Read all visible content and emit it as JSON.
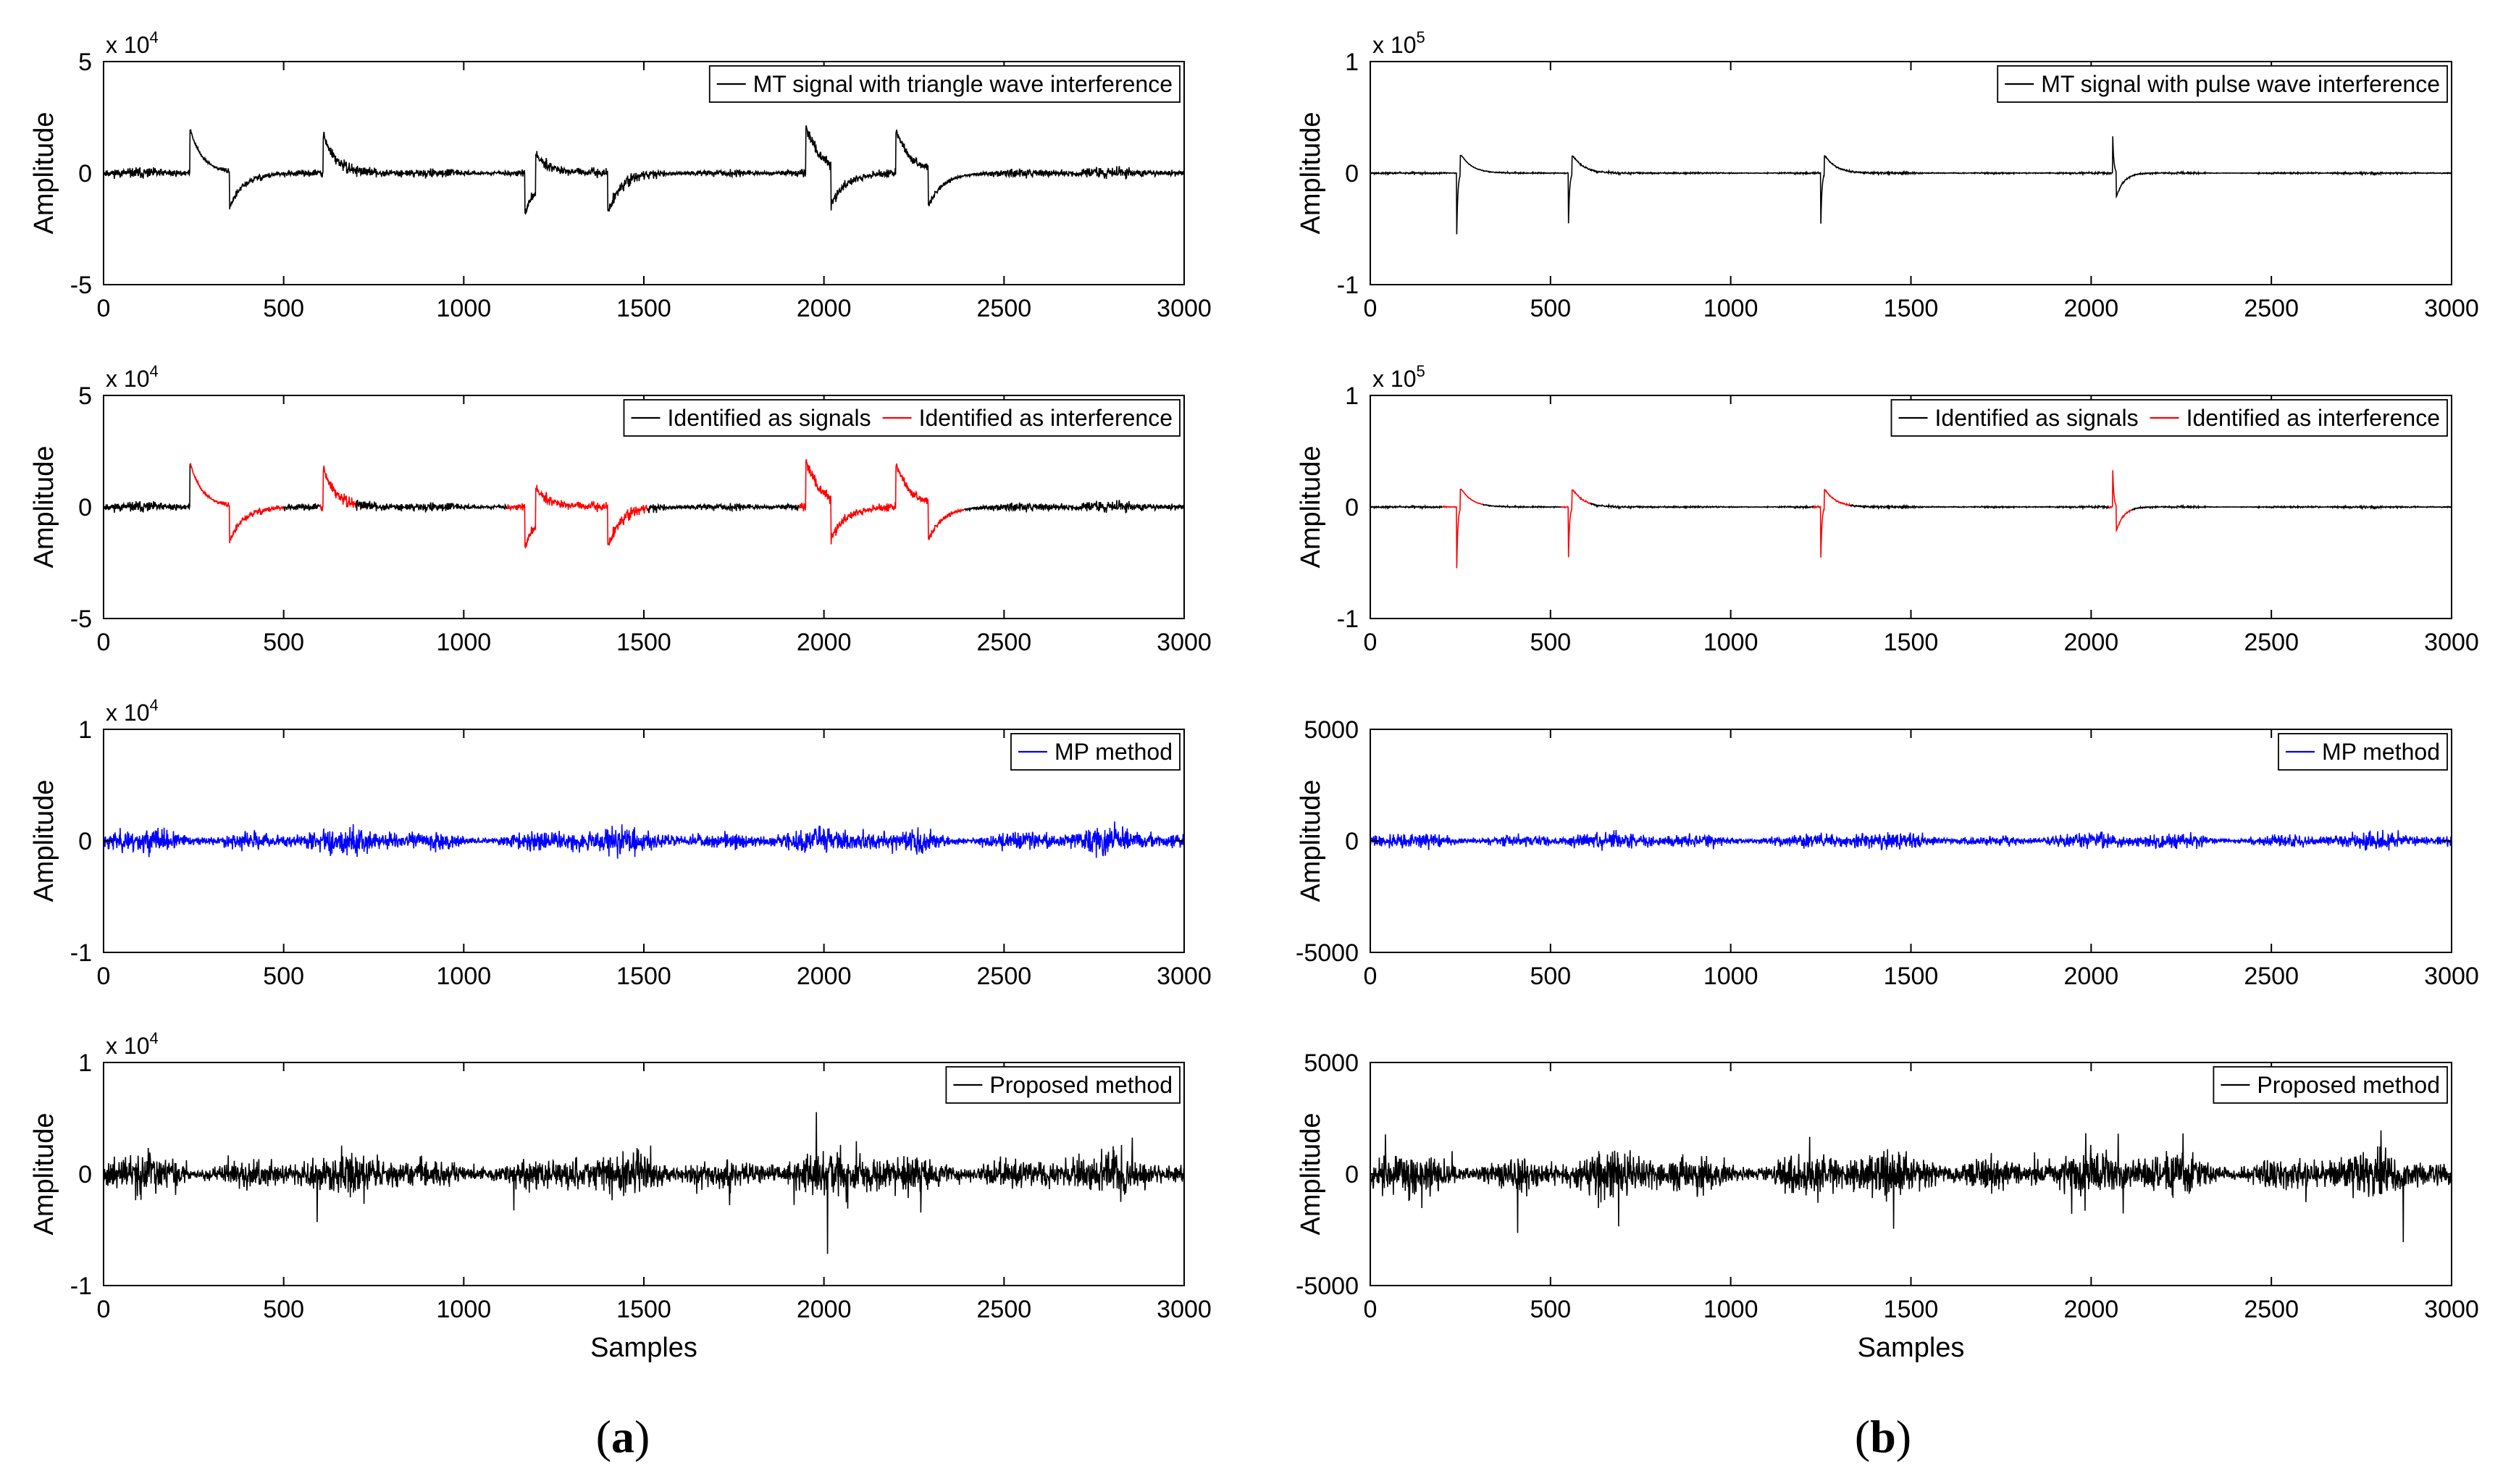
{
  "chart_data": [
    {
      "id": "a1",
      "type": "line",
      "column": "a",
      "row": 0,
      "xlabel": "",
      "ylabel": "Amplitude",
      "xlim": [
        0,
        3000
      ],
      "ylim": [
        -5,
        5
      ],
      "xticks": [
        "0",
        "500",
        "1000",
        "1500",
        "2000",
        "2500",
        "3000"
      ],
      "yticks": [
        "5",
        "0",
        "-5"
      ],
      "exponent": {
        "base": "x 10",
        "power": "4"
      },
      "series": [
        {
          "name": "MT signal with triangle wave interference",
          "color": "#000000",
          "noise": 0.15,
          "seed": 11,
          "events": [
            {
              "x": 240,
              "amp": 2.0,
              "decay": 35
            },
            {
              "x": 350,
              "amp": -1.6,
              "decay": 40
            },
            {
              "x": 610,
              "amp": 1.7,
              "decay": 35
            },
            {
              "x": 1170,
              "amp": -1.8,
              "decay": 40
            },
            {
              "x": 1200,
              "amp": 1.7,
              "decay": 40
            },
            {
              "x": 1400,
              "amp": -1.8,
              "decay": 35
            },
            {
              "x": 1950,
              "amp": 2.1,
              "decay": 40
            },
            {
              "x": 2020,
              "amp": -1.8,
              "decay": 40
            },
            {
              "x": 2200,
              "amp": 2.0,
              "decay": 40
            },
            {
              "x": 2290,
              "amp": -1.7,
              "decay": 40
            }
          ]
        }
      ],
      "legend": [
        "MT signal with triangle wave interference"
      ]
    },
    {
      "id": "a2",
      "type": "line",
      "column": "a",
      "row": 1,
      "xlabel": "",
      "ylabel": "Amplitude",
      "xlim": [
        0,
        3000
      ],
      "ylim": [
        -5,
        5
      ],
      "xticks": [
        "0",
        "500",
        "1000",
        "1500",
        "2000",
        "2500",
        "3000"
      ],
      "yticks": [
        "5",
        "0",
        "-5"
      ],
      "exponent": {
        "base": "x 10",
        "power": "4"
      },
      "series": [
        {
          "name": "Identified as signals",
          "color": "#000000",
          "noise": 0.15,
          "seed": 11,
          "events": [
            {
              "x": 240,
              "amp": 2.0,
              "decay": 35
            },
            {
              "x": 350,
              "amp": -1.6,
              "decay": 40
            },
            {
              "x": 610,
              "amp": 1.7,
              "decay": 35
            },
            {
              "x": 1170,
              "amp": -1.8,
              "decay": 40
            },
            {
              "x": 1200,
              "amp": 1.7,
              "decay": 40
            },
            {
              "x": 1400,
              "amp": -1.8,
              "decay": 35
            },
            {
              "x": 1950,
              "amp": 2.1,
              "decay": 40
            },
            {
              "x": 2020,
              "amp": -1.8,
              "decay": 40
            },
            {
              "x": 2200,
              "amp": 2.0,
              "decay": 40
            },
            {
              "x": 2290,
              "amp": -1.7,
              "decay": 40
            }
          ],
          "interference_color": "#ff0000",
          "interference_ranges": [
            [
              240,
              500
            ],
            [
              600,
              700
            ],
            [
              1120,
              1510
            ],
            [
              1930,
              2390
            ]
          ]
        }
      ],
      "legend": [
        "Identified as signals",
        "Identified as interference"
      ]
    },
    {
      "id": "a3",
      "type": "line",
      "column": "a",
      "row": 2,
      "xlabel": "",
      "ylabel": "Amplitude",
      "xlim": [
        0,
        3000
      ],
      "ylim": [
        -1,
        1
      ],
      "xticks": [
        "0",
        "500",
        "1000",
        "1500",
        "2000",
        "2500",
        "3000"
      ],
      "yticks": [
        "1",
        "0",
        "-1"
      ],
      "exponent": {
        "base": "x 10",
        "power": "4"
      },
      "series": [
        {
          "name": "MP method",
          "color": "#0000ff",
          "noise": 0.07,
          "seed": 23,
          "events": []
        }
      ],
      "legend": [
        "MP method"
      ]
    },
    {
      "id": "a4",
      "type": "line",
      "column": "a",
      "row": 3,
      "xlabel": "Samples",
      "ylabel": "Amplitude",
      "xlim": [
        0,
        3000
      ],
      "ylim": [
        -1,
        1
      ],
      "xticks": [
        "0",
        "500",
        "1000",
        "1500",
        "2000",
        "2500",
        "3000"
      ],
      "yticks": [
        "1",
        "0",
        "-1"
      ],
      "exponent": {
        "base": "x 10",
        "power": "4"
      },
      "series": [
        {
          "name": "Proposed method",
          "color": "#000000",
          "noise": 0.11,
          "seed": 37,
          "events": [],
          "spiky": true
        }
      ],
      "legend": [
        "Proposed method"
      ]
    },
    {
      "id": "b1",
      "type": "line",
      "column": "b",
      "row": 0,
      "xlabel": "",
      "ylabel": "Amplitude",
      "xlim": [
        0,
        3000
      ],
      "ylim": [
        -1,
        1
      ],
      "xticks": [
        "0",
        "500",
        "1000",
        "1500",
        "2000",
        "2500",
        "3000"
      ],
      "yticks": [
        "1",
        "0",
        "-1"
      ],
      "exponent": {
        "base": "x 10",
        "power": "5"
      },
      "series": [
        {
          "name": "MT signal with pulse wave interference",
          "color": "#000000",
          "noise": 0.006,
          "seed": 5,
          "events": [
            {
              "x": 240,
              "amp": -0.55,
              "decay": 3
            },
            {
              "x": 250,
              "amp": 0.18,
              "decay": 30
            },
            {
              "x": 550,
              "amp": -0.45,
              "decay": 3
            },
            {
              "x": 560,
              "amp": 0.17,
              "decay": 30
            },
            {
              "x": 1250,
              "amp": -0.45,
              "decay": 3
            },
            {
              "x": 1260,
              "amp": 0.17,
              "decay": 30
            },
            {
              "x": 2060,
              "amp": 0.33,
              "decay": 3
            },
            {
              "x": 2070,
              "amp": -0.22,
              "decay": 20
            }
          ]
        }
      ],
      "legend": [
        "MT signal with pulse wave interference"
      ]
    },
    {
      "id": "b2",
      "type": "line",
      "column": "b",
      "row": 1,
      "xlabel": "",
      "ylabel": "Amplitude",
      "xlim": [
        0,
        3000
      ],
      "ylim": [
        -1,
        1
      ],
      "xticks": [
        "0",
        "500",
        "1000",
        "1500",
        "2000",
        "2500",
        "3000"
      ],
      "yticks": [
        "1",
        "0",
        "-1"
      ],
      "exponent": {
        "base": "x 10",
        "power": "5"
      },
      "series": [
        {
          "name": "Identified as signals",
          "color": "#000000",
          "noise": 0.006,
          "seed": 5,
          "events": [
            {
              "x": 240,
              "amp": -0.55,
              "decay": 3
            },
            {
              "x": 250,
              "amp": 0.18,
              "decay": 30
            },
            {
              "x": 550,
              "amp": -0.45,
              "decay": 3
            },
            {
              "x": 560,
              "amp": 0.17,
              "decay": 30
            },
            {
              "x": 1250,
              "amp": -0.45,
              "decay": 3
            },
            {
              "x": 1260,
              "amp": 0.17,
              "decay": 30
            },
            {
              "x": 2060,
              "amp": 0.33,
              "decay": 3
            },
            {
              "x": 2070,
              "amp": -0.22,
              "decay": 20
            }
          ],
          "interference_color": "#ff0000",
          "interference_ranges": [
            [
              200,
              310
            ],
            [
              530,
              610
            ],
            [
              1230,
              1330
            ],
            [
              2050,
              2110
            ]
          ]
        }
      ],
      "legend": [
        "Identified as signals",
        "Identified as interference"
      ]
    },
    {
      "id": "b3",
      "type": "line",
      "column": "b",
      "row": 2,
      "xlabel": "",
      "ylabel": "Amplitude",
      "xlim": [
        0,
        3000
      ],
      "ylim": [
        -5000,
        5000
      ],
      "xticks": [
        "0",
        "500",
        "1000",
        "1500",
        "2000",
        "2500",
        "3000"
      ],
      "yticks": [
        "5000",
        "0",
        "-5000"
      ],
      "exponent": null,
      "series": [
        {
          "name": "MP method",
          "color": "#0000ff",
          "noise": 230,
          "seed": 41,
          "events": []
        }
      ],
      "legend": [
        "MP method"
      ]
    },
    {
      "id": "b4",
      "type": "line",
      "column": "b",
      "row": 3,
      "xlabel": "Samples",
      "ylabel": "Amplitude",
      "xlim": [
        0,
        3000
      ],
      "ylim": [
        -5000,
        5000
      ],
      "xticks": [
        "0",
        "500",
        "1000",
        "1500",
        "2000",
        "2500",
        "3000"
      ],
      "yticks": [
        "5000",
        "0",
        "-5000"
      ],
      "exponent": null,
      "series": [
        {
          "name": "Proposed method",
          "color": "#000000",
          "noise": 620,
          "seed": 53,
          "events": [],
          "spiky": true
        }
      ],
      "legend": [
        "Proposed method"
      ]
    }
  ],
  "panel_labels": {
    "a": "a",
    "b": "b"
  }
}
